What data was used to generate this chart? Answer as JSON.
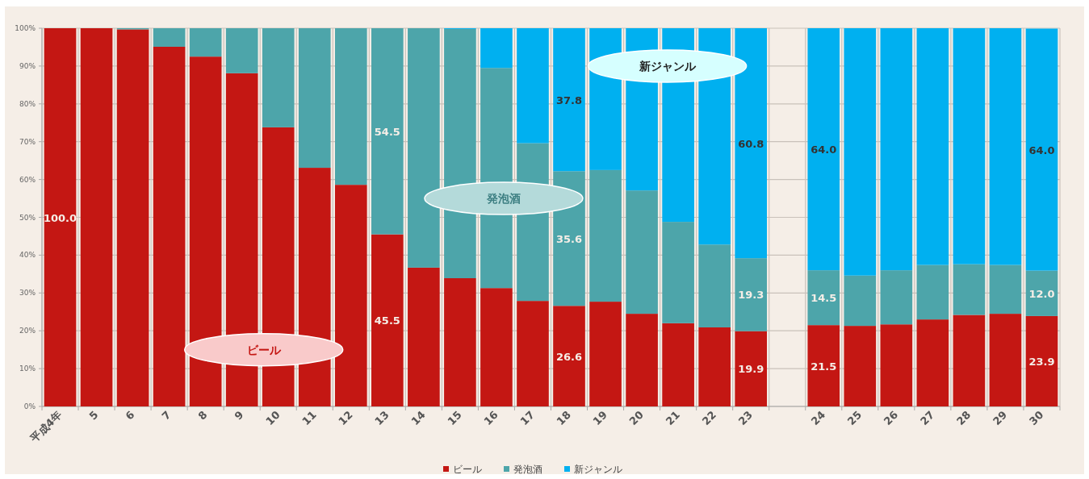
{
  "chart_data": {
    "type": "bar",
    "stacked": true,
    "categories": [
      "平成4年",
      "5",
      "6",
      "7",
      "8",
      "9",
      "10",
      "11",
      "12",
      "13",
      "14",
      "15",
      "16",
      "17",
      "18",
      "19",
      "20",
      "21",
      "22",
      "23",
      null,
      "24",
      "25",
      "26",
      "27",
      "28",
      "29",
      "30"
    ],
    "series": [
      {
        "name": "ビール",
        "color": "#c41713",
        "values": [
          100,
          100,
          99.7,
          95.1,
          92.5,
          88.1,
          73.8,
          63.1,
          58.6,
          45.5,
          36.7,
          33.9,
          31.3,
          27.9,
          26.6,
          27.7,
          24.5,
          22.0,
          20.9,
          19.9,
          null,
          21.5,
          21.3,
          21.7,
          23.0,
          24.2,
          24.5,
          23.9
        ],
        "value_labels": [
          "100.0",
          null,
          null,
          null,
          null,
          null,
          null,
          null,
          null,
          "45.5",
          null,
          null,
          null,
          null,
          "26.6",
          null,
          null,
          null,
          null,
          "19.9",
          null,
          "21.5",
          null,
          null,
          null,
          null,
          null,
          "23.9"
        ]
      },
      {
        "name": "発泡酒",
        "color": "#4da5aa",
        "values": [
          0,
          0,
          0.3,
          4.9,
          7.5,
          11.9,
          26.2,
          36.9,
          41.4,
          54.5,
          63.3,
          65.9,
          58.2,
          41.7,
          35.6,
          34.8,
          32.6,
          26.8,
          21.9,
          19.3,
          null,
          14.5,
          13.3,
          14.3,
          14.4,
          13.4,
          12.9,
          12.0
        ],
        "value_labels": [
          null,
          null,
          null,
          null,
          null,
          null,
          null,
          null,
          null,
          "54.5",
          null,
          null,
          null,
          null,
          "35.6",
          null,
          null,
          null,
          null,
          "19.3",
          null,
          "14.5",
          null,
          null,
          null,
          null,
          null,
          "12.0"
        ]
      },
      {
        "name": "新ジャンル",
        "color": "#00b0f0",
        "values": [
          0,
          0,
          0,
          0,
          0,
          0,
          0,
          0,
          0,
          0,
          0,
          0.2,
          10.5,
          30.4,
          37.8,
          37.5,
          42.9,
          51.2,
          57.2,
          60.8,
          null,
          64.0,
          65.4,
          64.0,
          62.6,
          62.4,
          62.6,
          64.0
        ],
        "value_labels": [
          null,
          null,
          null,
          null,
          null,
          null,
          null,
          null,
          null,
          null,
          null,
          null,
          null,
          null,
          "37.8",
          null,
          null,
          null,
          null,
          "60.8",
          null,
          "64.0",
          null,
          null,
          null,
          null,
          null,
          "64.0"
        ]
      }
    ],
    "ylim": [
      0,
      100
    ],
    "yticks": [
      {
        "value": 0,
        "label": "0%"
      },
      {
        "value": 10,
        "label": "10%"
      },
      {
        "value": 20,
        "label": "20%"
      },
      {
        "value": 30,
        "label": "30%"
      },
      {
        "value": 40,
        "label": "40%"
      },
      {
        "value": 50,
        "label": "50%"
      },
      {
        "value": 60,
        "label": "60%"
      },
      {
        "value": 70,
        "label": "70%"
      },
      {
        "value": 80,
        "label": "80%"
      },
      {
        "value": 90,
        "label": "90%"
      },
      {
        "value": 100,
        "label": "100%"
      }
    ],
    "grid": true,
    "legend": "bottom",
    "annotations": [
      "ビール",
      "発泡酒",
      "新ジャンル"
    ]
  }
}
